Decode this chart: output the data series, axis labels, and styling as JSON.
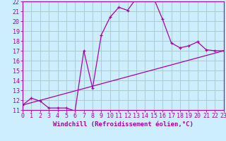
{
  "xlabel": "Windchill (Refroidissement éolien,°C)",
  "bg_color": "#cceeff",
  "grid_color": "#aacccc",
  "line_color": "#aa00aa",
  "x_hours": [
    0,
    1,
    2,
    3,
    4,
    5,
    6,
    7,
    8,
    9,
    10,
    11,
    12,
    13,
    14,
    15,
    16,
    17,
    18,
    19,
    20,
    21,
    22,
    23
  ],
  "y_windchill": [
    11.5,
    12.2,
    11.9,
    11.2,
    11.2,
    11.2,
    10.9,
    17.0,
    13.2,
    18.6,
    20.4,
    21.4,
    21.1,
    22.3,
    22.2,
    22.3,
    20.2,
    17.8,
    17.3,
    17.5,
    17.9,
    17.1,
    17.0,
    17.0
  ],
  "y_reg_start": 11.5,
  "y_reg_end": 17.0,
  "ylim_min": 11,
  "ylim_max": 22,
  "xlim_min": 0,
  "xlim_max": 23,
  "yticks": [
    11,
    12,
    13,
    14,
    15,
    16,
    17,
    18,
    19,
    20,
    21,
    22
  ],
  "xticks": [
    0,
    1,
    2,
    3,
    4,
    5,
    6,
    7,
    8,
    9,
    10,
    11,
    12,
    13,
    14,
    15,
    16,
    17,
    18,
    19,
    20,
    21,
    22,
    23
  ],
  "tick_fontsize": 6,
  "xlabel_fontsize": 6.5
}
